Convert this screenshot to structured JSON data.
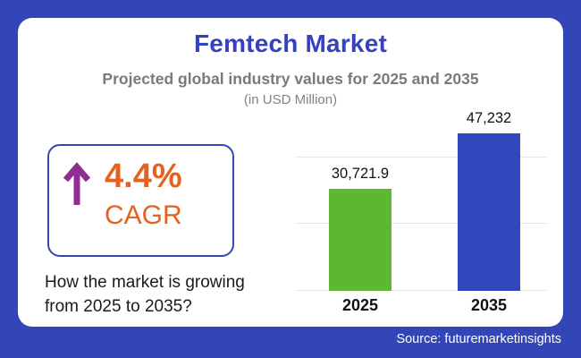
{
  "page": {
    "background_color": "#3346b8",
    "card_color": "#ffffff",
    "source_label": "Source: futuremarketinsights"
  },
  "header": {
    "title": "Femtech Market",
    "title_color": "#3442bd",
    "subtitle": "Projected global industry values for 2025 and 2035",
    "unit_note": "(in USD Million)"
  },
  "cagr": {
    "icon": "up-arrow-icon",
    "value": "4.4%",
    "label": "CAGR",
    "arrow_color": "#8e2d92",
    "text_color": "#e8611c",
    "border_color": "#3346b8"
  },
  "question": {
    "line1": "How the market is growing",
    "line2": "from 2025 to 2035?"
  },
  "chart_data": {
    "type": "bar",
    "categories": [
      "2025",
      "2035"
    ],
    "values": [
      30721.9,
      47232
    ],
    "value_labels": [
      "30,721.9",
      "47,232"
    ],
    "bar_colors": [
      "#5cb830",
      "#3247bb"
    ],
    "title": "Femtech Market",
    "subtitle": "Projected global industry values for 2025 and 2035",
    "unit": "USD Million",
    "xlabel": "",
    "ylabel": "",
    "ylim": [
      0,
      55000
    ],
    "gridline_values": [
      20000,
      40000
    ],
    "grid_color": "#f0e6dd",
    "legend": "none"
  }
}
